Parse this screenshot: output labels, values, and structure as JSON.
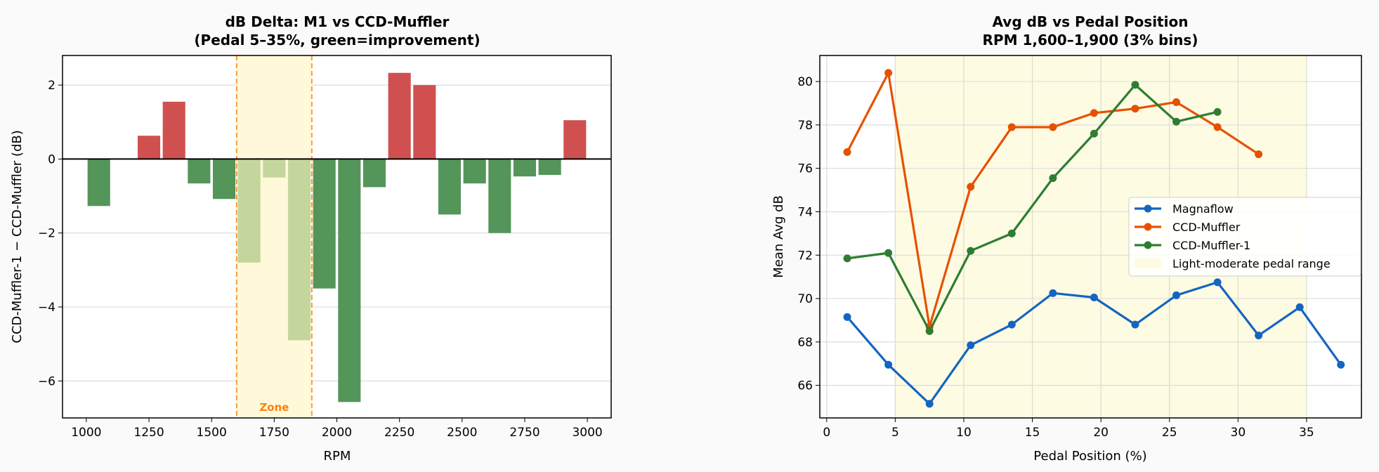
{
  "chart_data": [
    {
      "type": "bar",
      "title": [
        "dB Delta: M1 vs CCD-Muffler",
        "(Pedal 5–35%, green=improvement)"
      ],
      "xlabel": "RPM",
      "ylabel": "CCD-Muffler-1 − CCD-Muffler (dB)",
      "xlim": [
        905,
        3095
      ],
      "ylim": [
        -7.0,
        2.8
      ],
      "xticks": [
        1000,
        1250,
        1500,
        1750,
        2000,
        2250,
        2500,
        2750,
        3000
      ],
      "yticks": [
        -6,
        -4,
        -2,
        0,
        2
      ],
      "ytick_labels": [
        "−6",
        "−4",
        "−2",
        "0",
        "2"
      ],
      "bar_width": 90,
      "x": [
        1050,
        1250,
        1350,
        1450,
        1550,
        1650,
        1750,
        1850,
        1950,
        2050,
        2150,
        2250,
        2350,
        2450,
        2550,
        2650,
        2750,
        2850,
        2950
      ],
      "values": [
        -1.27,
        0.63,
        1.55,
        -0.66,
        -1.08,
        -2.8,
        -0.5,
        -4.9,
        -3.5,
        -6.57,
        -0.76,
        2.33,
        2.0,
        -1.5,
        -0.66,
        -2.0,
        -0.47,
        -0.43,
        1.05
      ],
      "zone": {
        "range": [
          1600,
          1900
        ],
        "label": "Zone"
      },
      "grid": "y",
      "colors": {
        "worse": "#d05050",
        "better": "#54955a",
        "better_zone": "#c5d69c",
        "zone_fill": "#fff9d9",
        "zone_line": "#ff9a33",
        "zone_label": "#ff7f0e"
      }
    },
    {
      "type": "line",
      "title": [
        "Avg dB vs Pedal Position",
        "RPM 1,600–1,900 (3% bins)"
      ],
      "xlabel": "Pedal Position (%)",
      "ylabel": "Mean Avg dB",
      "xlim": [
        -0.5,
        39
      ],
      "ylim": [
        64.5,
        81.2
      ],
      "xticks": [
        0,
        5,
        10,
        15,
        20,
        25,
        30,
        35
      ],
      "yticks": [
        66,
        68,
        70,
        72,
        74,
        76,
        78,
        80
      ],
      "grid": "both",
      "legend_position": "center-right",
      "shade": {
        "range": [
          5,
          35
        ],
        "label": "Light-moderate pedal range",
        "color": "#fefbe3"
      },
      "series": [
        {
          "name": "Magnaflow",
          "color": "#1565c0",
          "x": [
            1.5,
            4.5,
            7.5,
            10.5,
            13.5,
            16.5,
            19.5,
            22.5,
            25.5,
            28.5,
            31.5,
            34.5,
            37.5
          ],
          "y": [
            69.15,
            66.95,
            65.15,
            67.85,
            68.8,
            70.25,
            70.05,
            68.8,
            70.15,
            70.75,
            68.3,
            69.6,
            66.95
          ]
        },
        {
          "name": "CCD-Muffler",
          "color": "#e65100",
          "x": [
            1.5,
            4.5,
            7.5,
            10.5,
            13.5,
            16.5,
            19.5,
            22.5,
            25.5,
            28.5,
            31.5
          ],
          "y": [
            76.75,
            80.4,
            68.7,
            75.15,
            77.9,
            77.9,
            78.55,
            78.75,
            79.05,
            77.9,
            76.65
          ]
        },
        {
          "name": "CCD-Muffler-1",
          "color": "#2e7d32",
          "x": [
            1.5,
            4.5,
            7.5,
            10.5,
            13.5,
            16.5,
            19.5,
            22.5,
            25.5,
            28.5
          ],
          "y": [
            71.85,
            72.1,
            68.5,
            72.2,
            73.0,
            75.55,
            77.6,
            79.85,
            78.15,
            78.6
          ]
        }
      ]
    }
  ]
}
